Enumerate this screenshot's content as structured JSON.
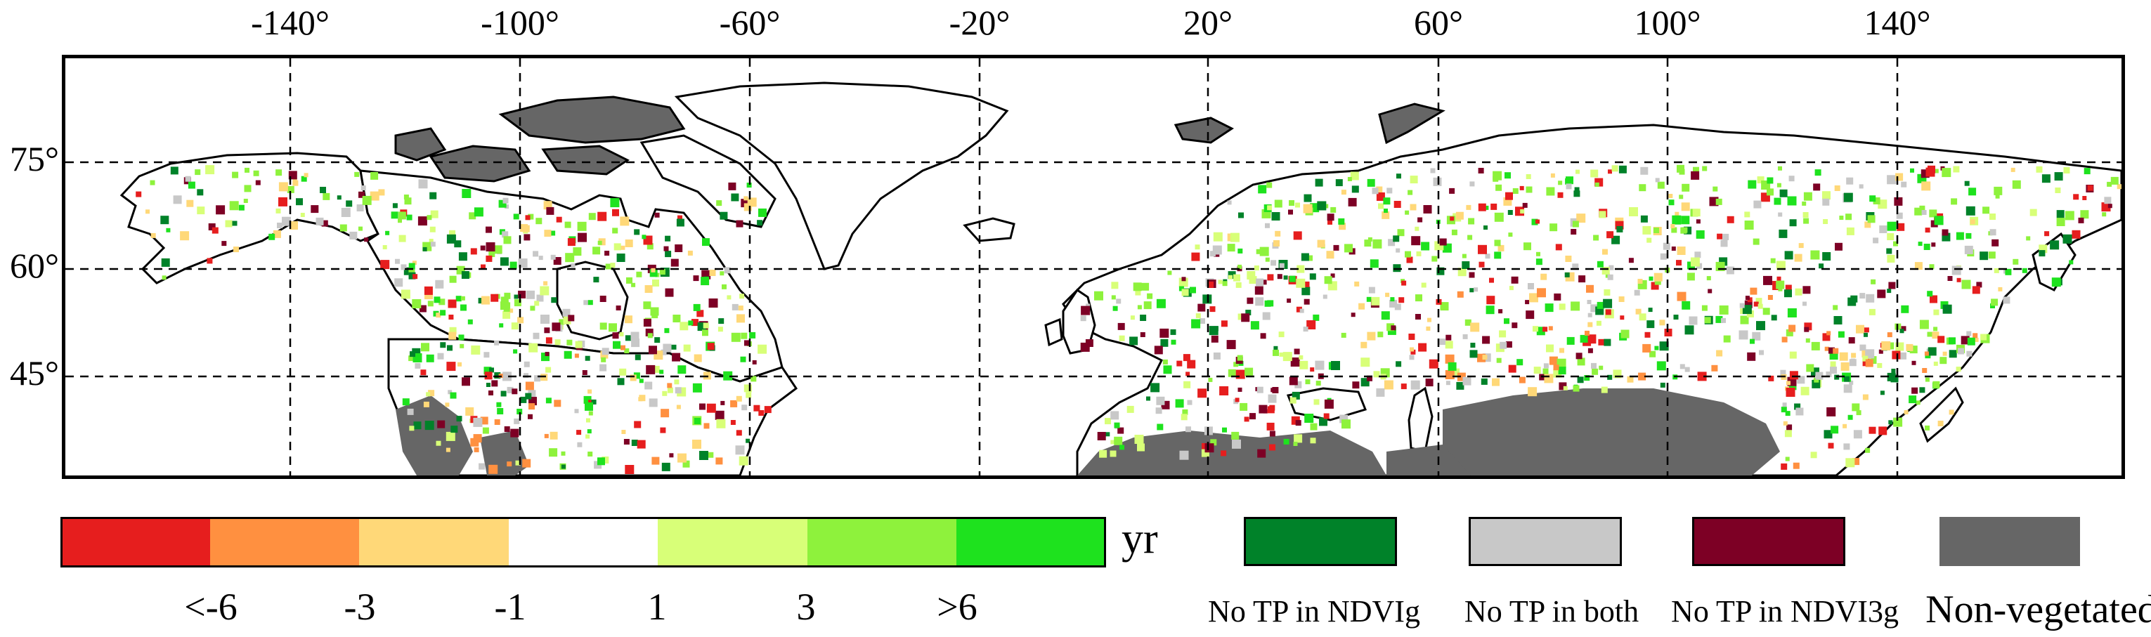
{
  "map": {
    "longitude_labels": [
      "-140°",
      "-100°",
      "-60°",
      "-20°",
      "20°",
      "60°",
      "100°",
      "140°"
    ],
    "latitude_labels": [
      "75°",
      "60°",
      "45°"
    ],
    "gridlines": "dashed",
    "projection": "equirectangular",
    "colors": {
      "land_outline": "#000000",
      "non_vegetated_land": "#666666",
      "no_tp_both": "#c8c8c8",
      "no_tp_ndvig": "#008229",
      "no_tp_ndvi3g": "#7d0025"
    }
  },
  "colorbar": {
    "unit": "yr",
    "colors": [
      "#e61e1e",
      "#ff9040",
      "#ffd878",
      "#ffffff",
      "#d8ff78",
      "#8ef23c",
      "#1ee21e"
    ],
    "ticks": [
      "<-6",
      "-3",
      "-1",
      "1",
      "3",
      ">6"
    ]
  },
  "legend": {
    "categories": [
      {
        "label": "No TP in NDVIg",
        "color": "#008229"
      },
      {
        "label": "No TP in both",
        "color": "#c8c8c8"
      },
      {
        "label": "No TP in NDVI3g",
        "color": "#7d0025"
      },
      {
        "label": "Non-vegetated",
        "color": "#666666"
      }
    ]
  }
}
